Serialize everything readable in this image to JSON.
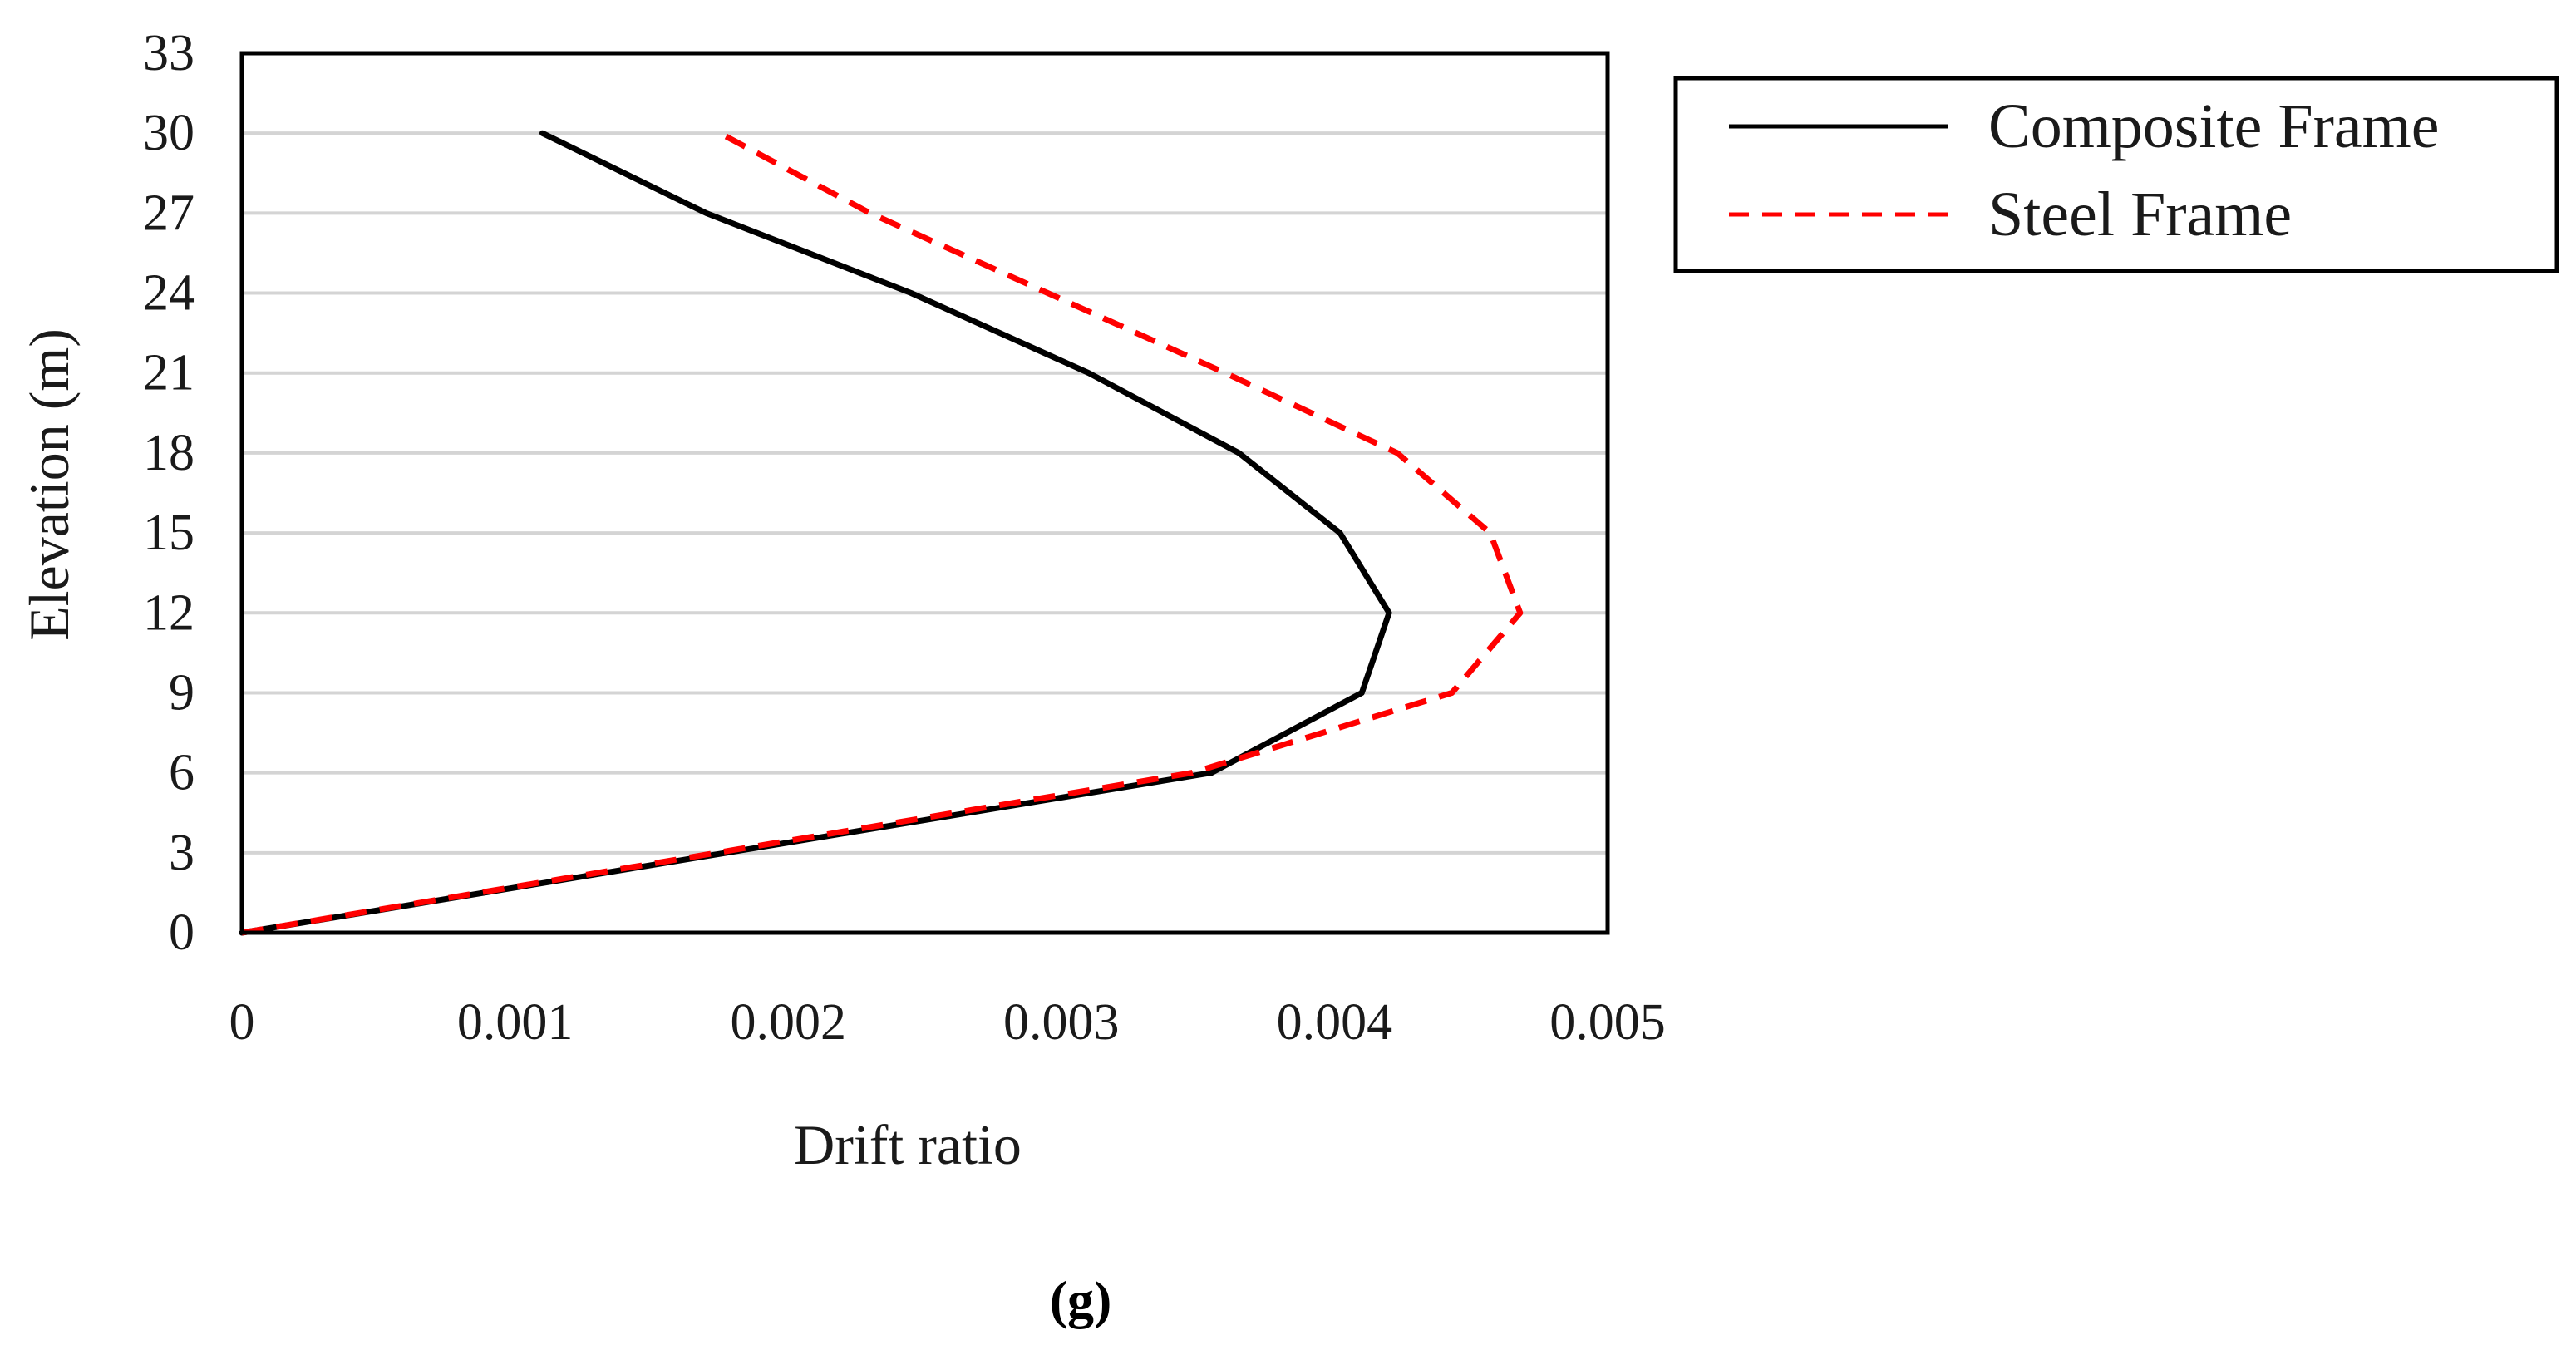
{
  "chart_data": {
    "type": "line",
    "xlabel": "Drift ratio",
    "ylabel": "Elevation (m)",
    "xlim": [
      0,
      0.005
    ],
    "ylim": [
      0,
      33
    ],
    "x_ticks": [
      "0",
      "0.001",
      "0.002",
      "0.003",
      "0.004",
      "0.005"
    ],
    "y_ticks": [
      "0",
      "3",
      "6",
      "9",
      "12",
      "15",
      "18",
      "21",
      "24",
      "27",
      "30",
      "33"
    ],
    "grid": "horizontal",
    "legend_position": "right-top-outside",
    "series": [
      {
        "name": "Composite Frame",
        "color": "#000000",
        "style": "solid",
        "points": [
          {
            "x": 0,
            "y": 0
          },
          {
            "x": 0.00355,
            "y": 6
          },
          {
            "x": 0.0041,
            "y": 9
          },
          {
            "x": 0.0042,
            "y": 12
          },
          {
            "x": 0.00402,
            "y": 15
          },
          {
            "x": 0.00365,
            "y": 18
          },
          {
            "x": 0.0031,
            "y": 21
          },
          {
            "x": 0.00245,
            "y": 24
          },
          {
            "x": 0.0017,
            "y": 27
          },
          {
            "x": 0.0011,
            "y": 30
          }
        ]
      },
      {
        "name": "Steel Frame",
        "color": "#ff0000",
        "style": "dashed",
        "points": [
          {
            "x": 0,
            "y": 0
          },
          {
            "x": 0.00348,
            "y": 6
          },
          {
            "x": 0.00443,
            "y": 9
          },
          {
            "x": 0.00468,
            "y": 12
          },
          {
            "x": 0.00457,
            "y": 15
          },
          {
            "x": 0.00423,
            "y": 18
          },
          {
            "x": 0.0036,
            "y": 21
          },
          {
            "x": 0.00295,
            "y": 24
          },
          {
            "x": 0.0023,
            "y": 27
          },
          {
            "x": 0.00175,
            "y": 30
          }
        ]
      }
    ]
  },
  "caption": "(g)"
}
